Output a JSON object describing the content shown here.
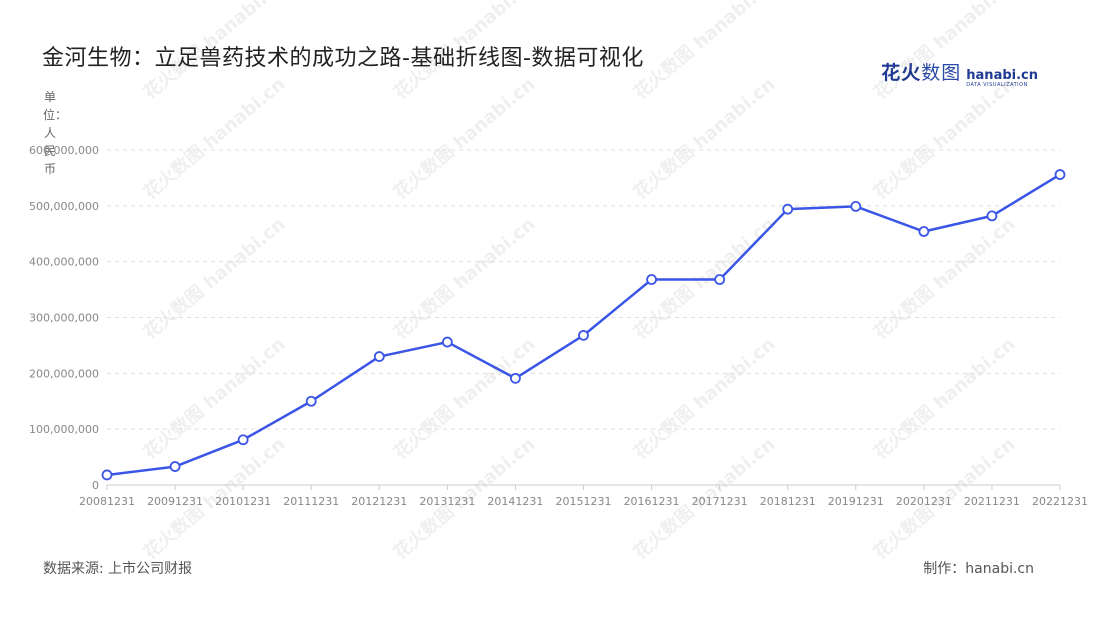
{
  "page": {
    "title": "金河生物：立足兽药技术的成功之路-基础折线图-数据可视化",
    "logo_cn": "花火",
    "logo_cn_2": "数图",
    "logo_en": "hanabi.cn",
    "logo_sub": "DATA VISUALIZATION",
    "unit_label": "单位：人民币",
    "source": "数据来源: 上市公司财报",
    "credit": "制作：hanabi.cn",
    "watermark": "花火数图 hanabi.cn"
  },
  "colors": {
    "line": "#3b55e6",
    "grid": "#dddddd",
    "axis": "#cccccc"
  },
  "chart_data": {
    "type": "line",
    "title": "金河生物：立足兽药技术的成功之路-基础折线图-数据可视化",
    "ylabel": "单位：人民币",
    "xlabel": "",
    "ylim": [
      0,
      600000000
    ],
    "yticks": [
      0,
      100000000,
      200000000,
      300000000,
      400000000,
      500000000,
      600000000
    ],
    "ytick_labels": [
      "0",
      "100,000,000",
      "200,000,000",
      "300,000,000",
      "400,000,000",
      "500,000,000",
      "600,000,000"
    ],
    "grid": true,
    "categories": [
      "20081231",
      "20091231",
      "20101231",
      "20111231",
      "20121231",
      "20131231",
      "20141231",
      "20151231",
      "20161231",
      "20171231",
      "20181231",
      "20191231",
      "20201231",
      "20211231",
      "20221231"
    ],
    "values": [
      18000000,
      33000000,
      81000000,
      150000000,
      230000000,
      256000000,
      191000000,
      268000000,
      368000000,
      368000000,
      494000000,
      499000000,
      454000000,
      482000000,
      556000000
    ]
  }
}
